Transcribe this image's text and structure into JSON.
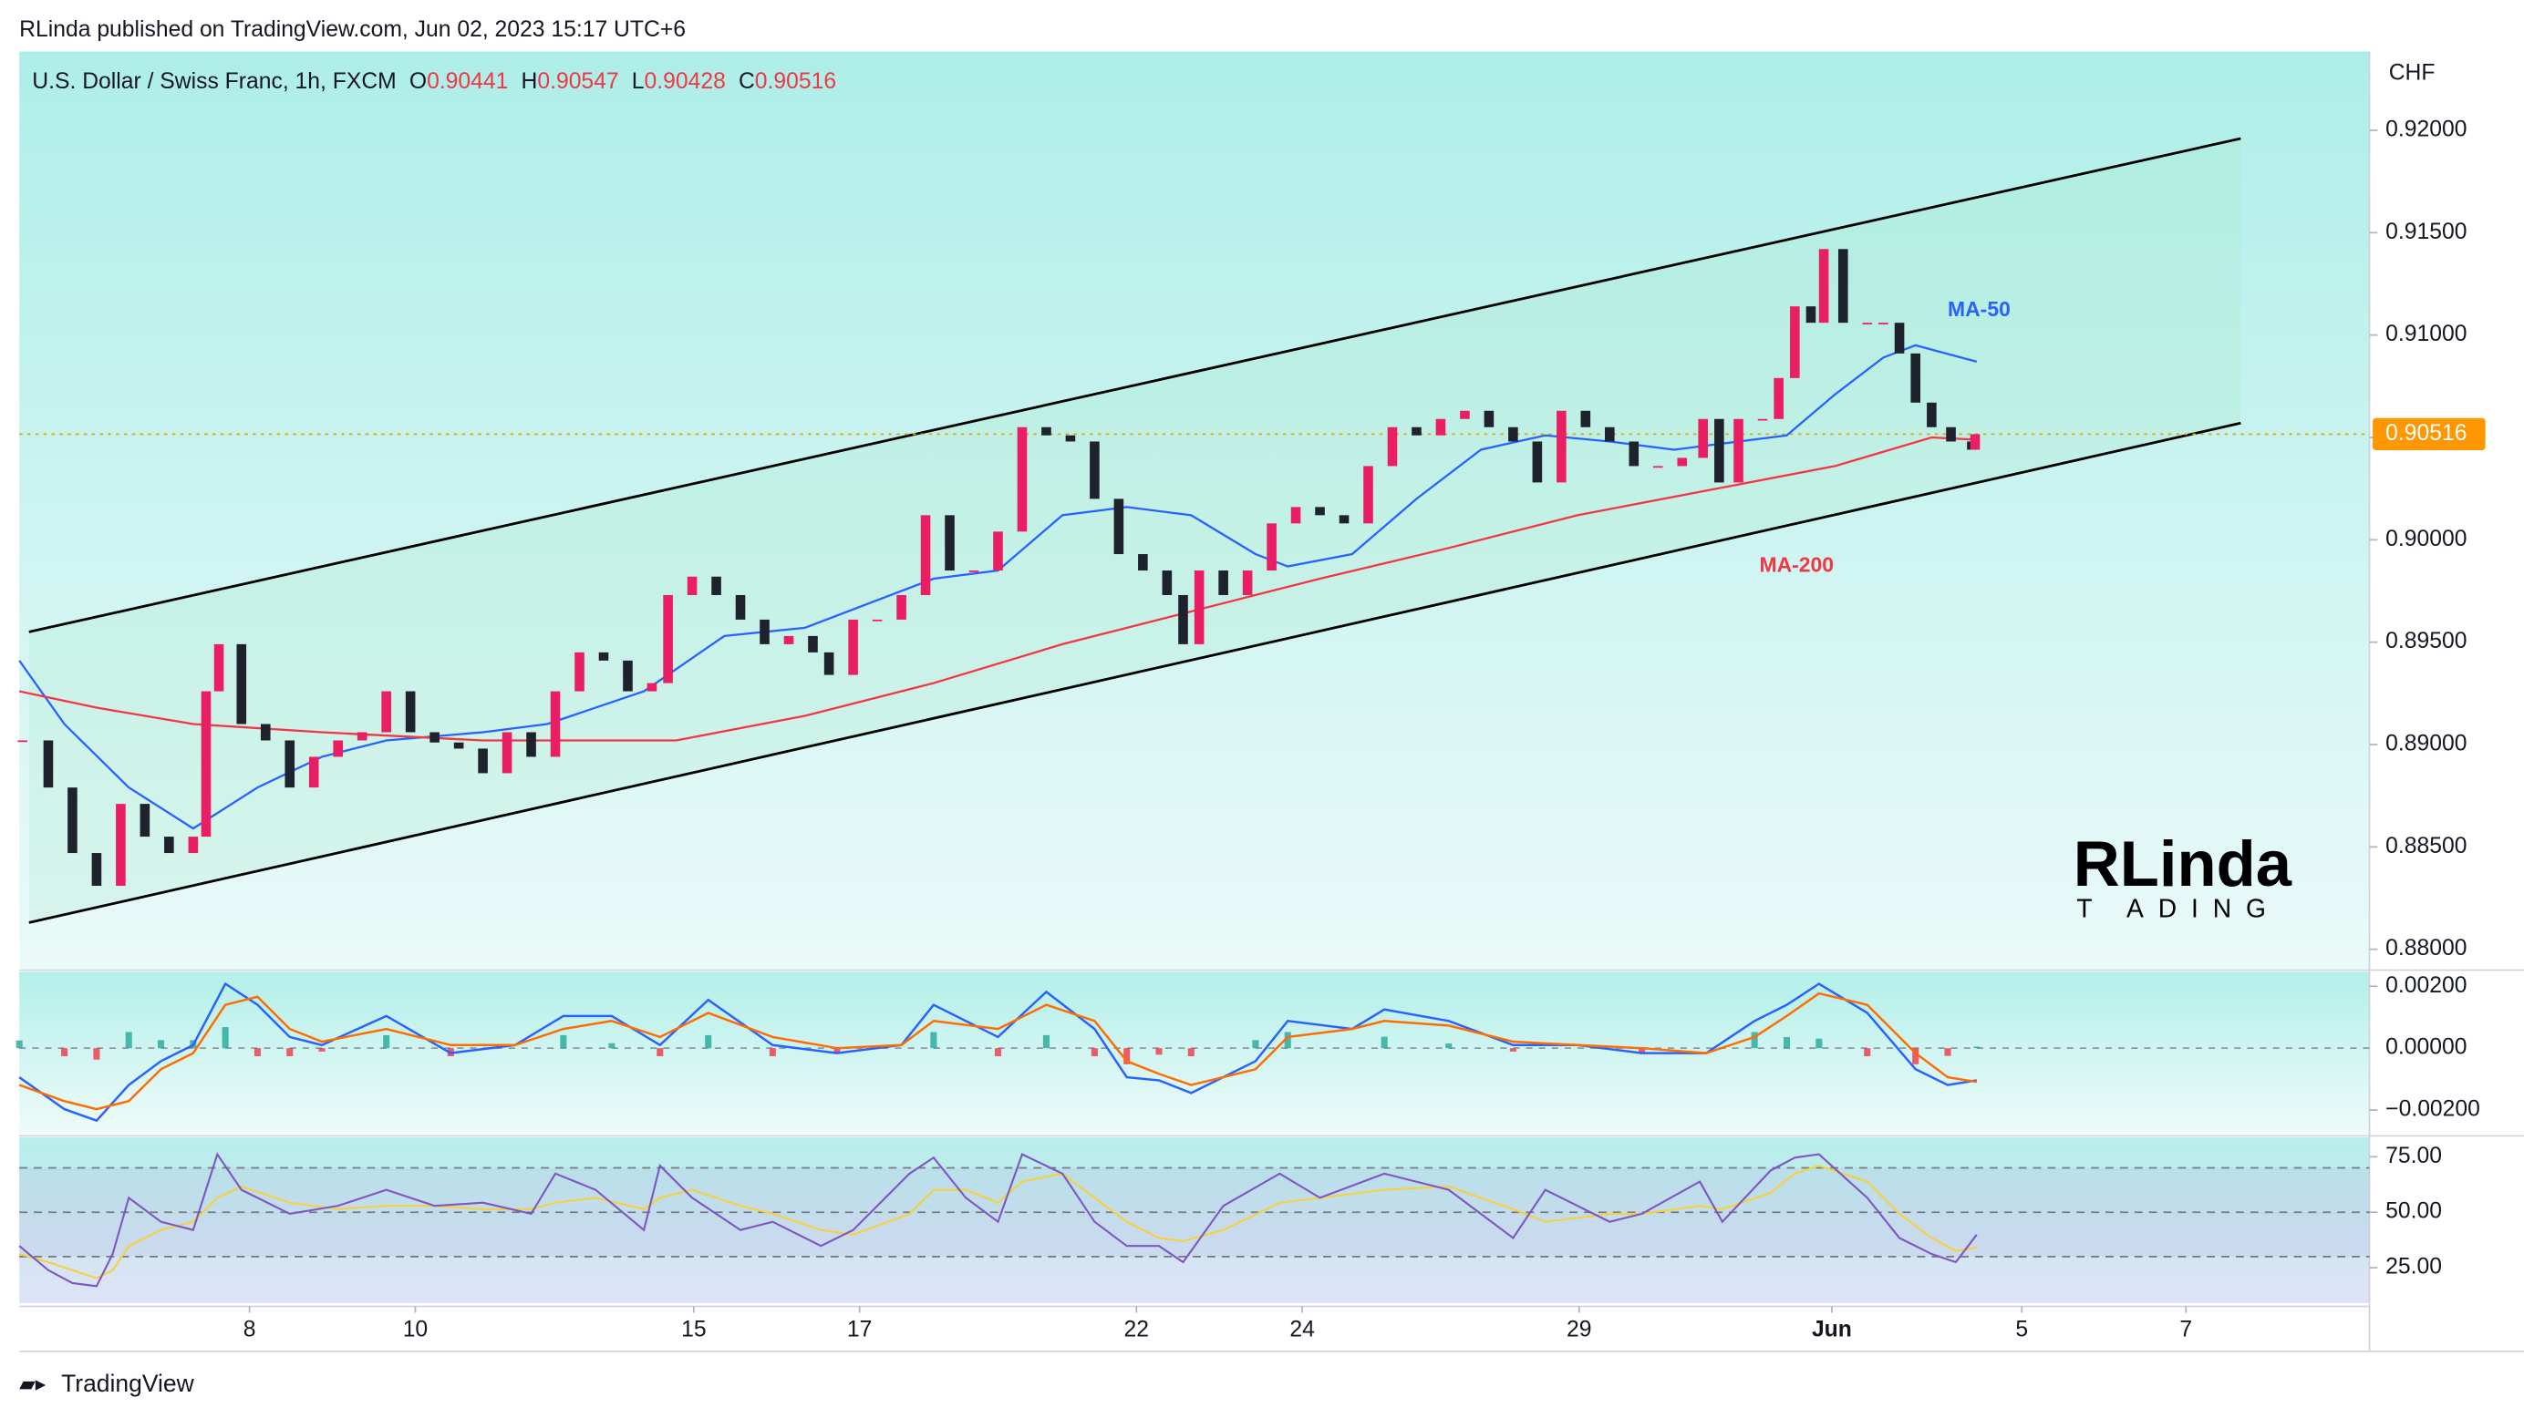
{
  "header": {
    "publisher": "RLinda published on TradingView.com, Jun 02, 2023 15:17 UTC+6",
    "footer": "TradingView",
    "logo": "RLinda",
    "logo_sub": "T ADING"
  },
  "chart_data": [
    {
      "type": "candlestick",
      "title": "U.S. Dollar / Swiss Franc, 1h, FXCM",
      "ohlc": [
        {
          "label": "O",
          "value": 0.90441
        },
        {
          "label": "H",
          "value": 0.90547
        },
        {
          "label": "L",
          "value": 0.90428
        },
        {
          "label": "C",
          "value": 0.90516
        }
      ],
      "unit": "CHF",
      "up_color": "#e91e63",
      "down_color": "#1e222d",
      "x": [
        1,
        9,
        16.5,
        24,
        31.5,
        39,
        46.5,
        54,
        58,
        62,
        69,
        76.5,
        84,
        91.5,
        99,
        106.5,
        114,
        121.5,
        129,
        136.5,
        144,
        151.5,
        159,
        166.5,
        174,
        181.5,
        189,
        196.5,
        201.5,
        209,
        216.5,
        224,
        231.5,
        239,
        246.5,
        251.5,
        259,
        266.5,
        274,
        281.5,
        289,
        296.5,
        304,
        311.5,
        319,
        326.5,
        334,
        341.5,
        349,
        356.5,
        361.5,
        366.5,
        374,
        381.5,
        389,
        396.5,
        404,
        411.5,
        419,
        426.5,
        434,
        441.5,
        449,
        456.5,
        464,
        471.5,
        479,
        486.5,
        494,
        501.5,
        509,
        516.5,
        523,
        528,
        534,
        541.5,
        546.5,
        551.5,
        556.5,
        560.5,
        566.5,
        574,
        579,
        584,
        589,
        594,
        600,
        606.5,
        607.5
      ],
      "values": [
        0.8902,
        0.8879,
        0.8847,
        0.8831,
        0.8871,
        0.8855,
        0.8847,
        0.8855,
        0.8926,
        0.8949,
        0.891,
        0.8902,
        0.8879,
        0.8894,
        0.8902,
        0.8906,
        0.8926,
        0.8906,
        0.8901,
        0.8898,
        0.8886,
        0.8906,
        0.8894,
        0.8926,
        0.8945,
        0.8941,
        0.8926,
        0.893,
        0.8973,
        0.8982,
        0.8973,
        0.8961,
        0.8949,
        0.8953,
        0.8945,
        0.8934,
        0.8961,
        0.8961,
        0.8973,
        0.9012,
        0.8985,
        0.8985,
        0.9004,
        0.9055,
        0.9051,
        0.9048,
        0.902,
        0.8993,
        0.8985,
        0.8973,
        0.8949,
        0.8985,
        0.8973,
        0.8985,
        0.9008,
        0.9016,
        0.9012,
        0.9008,
        0.9036,
        0.9055,
        0.9051,
        0.9059,
        0.9063,
        0.9055,
        0.9048,
        0.9028,
        0.9063,
        0.9055,
        0.9048,
        0.9036,
        0.9036,
        0.904,
        0.9059,
        0.9028,
        0.9059,
        0.9059,
        0.9079,
        0.9114,
        0.9106,
        0.9142,
        0.9106,
        0.9106,
        0.9106,
        0.9091,
        0.9067,
        0.9055,
        0.9048,
        0.9044,
        0.90516
      ],
      "series": [
        {
          "name": "MA-50",
          "color": "#2962ff",
          "x": [
            0,
            14,
            34,
            54,
            74,
            94,
            114,
            144,
            164,
            194,
            219,
            244,
            264,
            284,
            304,
            324,
            344,
            364,
            384,
            394,
            414,
            434,
            454,
            474,
            494,
            514,
            534,
            549,
            564,
            579,
            589,
            608
          ],
          "values": [
            0.8941,
            0.891,
            0.8879,
            0.8859,
            0.8879,
            0.8894,
            0.8902,
            0.8906,
            0.891,
            0.8926,
            0.8953,
            0.8957,
            0.8969,
            0.8981,
            0.8985,
            0.9012,
            0.9016,
            0.9012,
            0.8993,
            0.8987,
            0.8993,
            0.902,
            0.9044,
            0.9051,
            0.9048,
            0.9044,
            0.9048,
            0.9051,
            0.9071,
            0.9089,
            0.9095,
            0.9087
          ]
        },
        {
          "name": "MA-200",
          "color": "#f23645",
          "x": [
            0,
            24,
            54,
            94,
            144,
            204,
            244,
            284,
            324,
            364,
            404,
            444,
            484,
            524,
            564,
            594,
            606.5
          ],
          "values": [
            0.8926,
            0.8918,
            0.891,
            0.8906,
            0.8902,
            0.8902,
            0.8914,
            0.893,
            0.8949,
            0.8965,
            0.8981,
            0.8996,
            0.9012,
            0.9024,
            0.9036,
            0.905,
            0.9049
          ]
        }
      ],
      "channel": {
        "x": [
          3,
          690
        ],
        "upper": [
          0.8955,
          0.9196
        ],
        "lower": [
          0.8813,
          0.9057
        ]
      },
      "xlim": [
        0,
        730
      ],
      "xticks": [
        {
          "value": 71.5,
          "label": "8"
        },
        {
          "value": 123,
          "label": "10"
        },
        {
          "value": 209.5,
          "label": "15"
        },
        {
          "value": 261,
          "label": "17"
        },
        {
          "value": 347,
          "label": "22"
        },
        {
          "value": 398.5,
          "label": "24"
        },
        {
          "value": 484.5,
          "label": "29"
        },
        {
          "value": 563,
          "label": "Jun"
        },
        {
          "value": 622,
          "label": "5"
        },
        {
          "value": 673,
          "label": "7"
        }
      ],
      "ylim": [
        0.87906,
        0.92385
      ],
      "yticks": [
        {
          "value": 0.88,
          "label": "0.88000"
        },
        {
          "value": 0.885,
          "label": "0.88500"
        },
        {
          "value": 0.89,
          "label": "0.89000"
        },
        {
          "value": 0.895,
          "label": "0.89500"
        },
        {
          "value": 0.9,
          "label": "0.90000"
        },
        {
          "value": 0.905,
          "label": "0.90500"
        },
        {
          "value": 0.91,
          "label": "0.91000"
        },
        {
          "value": 0.915,
          "label": "0.91500"
        },
        {
          "value": 0.92,
          "label": "0.92000"
        }
      ]
    },
    {
      "type": "macd",
      "x": [
        0,
        14,
        24,
        34,
        44,
        54,
        64,
        74,
        84,
        94,
        114,
        134,
        154,
        169,
        184,
        199,
        214,
        234,
        254,
        274,
        284,
        304,
        319,
        334,
        344,
        354,
        364,
        384,
        394,
        414,
        424,
        444,
        464,
        484,
        504,
        524,
        539,
        549,
        559,
        574,
        589,
        599,
        608
      ],
      "series": [
        {
          "color": "#2962ff",
          "values": [
            -0.00094,
            -0.00197,
            -0.00234,
            -0.00119,
            -0.00042,
            0.0001,
            0.00208,
            0.0014,
            0.00036,
            0.0001,
            0.00104,
            -0.00016,
            0.0001,
            0.00104,
            0.00104,
            0.0001,
            0.00156,
            0.0001,
            -0.00016,
            0.0001,
            0.0014,
            0.00036,
            0.00182,
            0.00062,
            -0.00094,
            -0.00104,
            -0.00145,
            -0.00042,
            0.00088,
            0.00062,
            0.00125,
            0.00088,
            0.0001,
            0.0001,
            -0.00016,
            -0.00016,
            0.00088,
            0.0014,
            0.00208,
            0.00114,
            -0.00068,
            -0.00119,
            -0.00104
          ]
        },
        {
          "color": "#ff6d00",
          "values": [
            -0.00119,
            -0.00171,
            -0.00197,
            -0.00171,
            -0.00068,
            -0.00016,
            0.0014,
            0.00166,
            0.00062,
            0.00021,
            0.00062,
            0.0001,
            0.0001,
            0.00062,
            0.00088,
            0.00036,
            0.00114,
            0.00036,
            0,
            0.0001,
            0.00088,
            0.00062,
            0.0014,
            0.00088,
            -0.00042,
            -0.00083,
            -0.00119,
            -0.00068,
            0.00036,
            0.00062,
            0.00088,
            0.00073,
            0.00021,
            0.0001,
            0,
            -0.00016,
            0.00036,
            0.00104,
            0.00177,
            0.0014,
            -0.00016,
            -0.00094,
            -0.00109
          ]
        }
      ],
      "histogram": {
        "up_color": "#26a69a",
        "down_color": "#f23645",
        "values": [
          0.00025,
          -0.00026,
          -0.00037,
          0.00052,
          0.00026,
          0.00026,
          0.00068,
          -0.00026,
          -0.00026,
          -0.00011,
          0.00042,
          -0.00026,
          0,
          0.00042,
          0.00016,
          -0.00026,
          0.00042,
          -0.00026,
          -0.00016,
          0,
          0.00052,
          -0.00026,
          0.00042,
          -0.00026,
          -0.00052,
          -0.00021,
          -0.00026,
          0.00026,
          0.00052,
          0,
          0.00037,
          0.00015,
          -0.00011,
          0,
          -0.00016,
          0,
          0.00052,
          0.00036,
          0.00031,
          -0.00026,
          -0.00052,
          -0.00025,
          5e-05
        ]
      },
      "ylim": [
        -0.00278,
        0.00247
      ],
      "yticks": [
        {
          "value": 0.002,
          "label": "0.00200"
        },
        {
          "value": 0,
          "label": "0.00000"
        },
        {
          "value": -0.002,
          "label": "−0.00200"
        }
      ]
    },
    {
      "type": "rsi",
      "x": [
        0,
        9,
        16.5,
        24,
        29,
        34,
        44,
        54,
        61.5,
        69,
        84,
        99,
        114,
        129,
        144,
        159,
        166.5,
        179,
        194,
        199,
        209,
        224,
        234,
        249,
        259,
        276.5,
        284,
        294,
        304,
        311.5,
        324,
        334,
        344,
        354,
        361.5,
        374,
        391.5,
        404,
        424,
        444,
        464,
        474,
        494,
        504,
        522,
        529,
        544,
        551.5,
        559,
        574,
        584,
        594,
        601.5,
        608
      ],
      "series": [
        {
          "color": "#7e57c2",
          "values": [
            34.8,
            23.9,
            18.1,
            16.7,
            31.2,
            56.5,
            45.7,
            42.0,
            76.1,
            60.1,
            49.3,
            52.9,
            60.1,
            52.9,
            54.3,
            49.3,
            67.4,
            60.1,
            42.0,
            71.0,
            56.5,
            42.0,
            45.7,
            34.8,
            42.0,
            67.4,
            74.6,
            56.5,
            45.7,
            76.1,
            67.4,
            45.7,
            34.8,
            34.8,
            27.5,
            52.9,
            67.4,
            56.5,
            67.4,
            60.1,
            38.4,
            60.1,
            45.7,
            49.3,
            63.8,
            45.7,
            68.8,
            74.6,
            76.1,
            56.5,
            38.4,
            31.2,
            27.5,
            39.9
          ]
        },
        {
          "color": "#f5d142",
          "values": [
            31.2,
            27.5,
            23.9,
            20.3,
            23.9,
            34.8,
            42.0,
            45.7,
            56.5,
            61.6,
            54.3,
            51.4,
            52.9,
            52.9,
            51.4,
            51.4,
            54.3,
            56.5,
            51.4,
            56.5,
            60.1,
            52.9,
            49.3,
            42.0,
            39.9,
            49.3,
            60.1,
            60.1,
            54.3,
            63.8,
            67.4,
            56.5,
            45.7,
            38.4,
            37.0,
            42.0,
            54.3,
            56.5,
            60.1,
            61.6,
            51.4,
            45.7,
            49.3,
            49.3,
            52.9,
            51.4,
            58.7,
            67.4,
            71.0,
            63.8,
            49.3,
            38.4,
            32.6,
            34.1
          ]
        }
      ],
      "levels": [
        70,
        50,
        30
      ],
      "ylim": [
        9.06,
        83.7
      ],
      "yticks": [
        {
          "value": 75,
          "label": "75.00"
        },
        {
          "value": 50,
          "label": "50.00"
        },
        {
          "value": 25,
          "label": "25.00"
        }
      ]
    }
  ]
}
